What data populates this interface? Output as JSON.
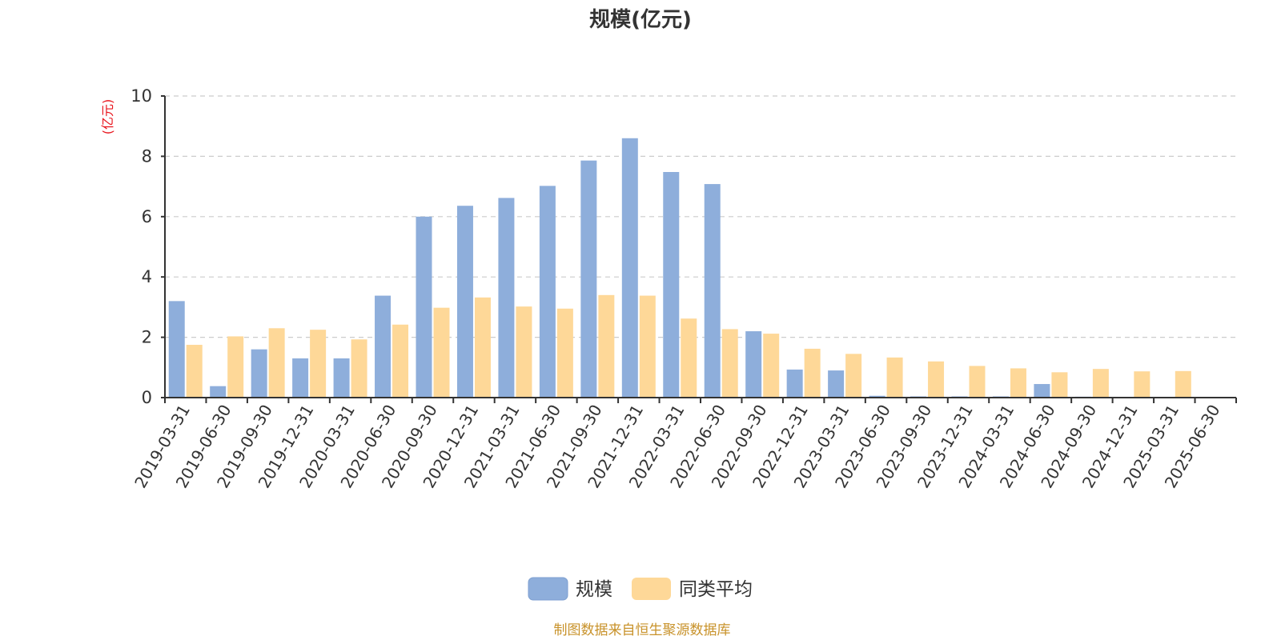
{
  "chart_data": {
    "type": "bar",
    "title": "规模(亿元)",
    "ylabel": "(亿元)",
    "ylim": [
      0,
      10
    ],
    "yticks": [
      "0",
      "2",
      "4",
      "6",
      "8",
      "10"
    ],
    "grid": true,
    "legend_position": "bottom",
    "categories": [
      "2019-03-31",
      "2019-06-30",
      "2019-09-30",
      "2019-12-31",
      "2020-03-31",
      "2020-06-30",
      "2020-09-30",
      "2020-12-31",
      "2021-03-31",
      "2021-06-30",
      "2021-09-30",
      "2021-12-31",
      "2022-03-31",
      "2022-06-30",
      "2022-09-30",
      "2022-12-31",
      "2023-03-31",
      "2023-06-30",
      "2023-09-30",
      "2023-12-31",
      "2024-03-31",
      "2024-06-30",
      "2024-09-30",
      "2024-12-31",
      "2025-03-31",
      "2025-06-30"
    ],
    "series": [
      {
        "name": "规模",
        "color": "#8eaedb",
        "values": [
          3.2,
          0.38,
          1.6,
          1.3,
          1.3,
          3.38,
          6.0,
          6.36,
          6.62,
          7.02,
          7.86,
          8.6,
          7.48,
          7.08,
          2.2,
          0.93,
          0.9,
          0.06,
          0.04,
          0.04,
          0.04,
          0.45,
          0.03,
          0.02,
          0.02,
          0.02
        ]
      },
      {
        "name": "同类平均",
        "color": "#fed898",
        "values": [
          1.75,
          2.03,
          2.3,
          2.25,
          1.93,
          2.42,
          2.98,
          3.32,
          3.02,
          2.95,
          3.4,
          3.38,
          2.62,
          2.27,
          2.12,
          1.62,
          1.45,
          1.33,
          1.2,
          1.05,
          0.97,
          0.84,
          0.95,
          0.87,
          0.88,
          null
        ]
      }
    ]
  },
  "source_note": "制图数据来自恒生聚源数据库"
}
